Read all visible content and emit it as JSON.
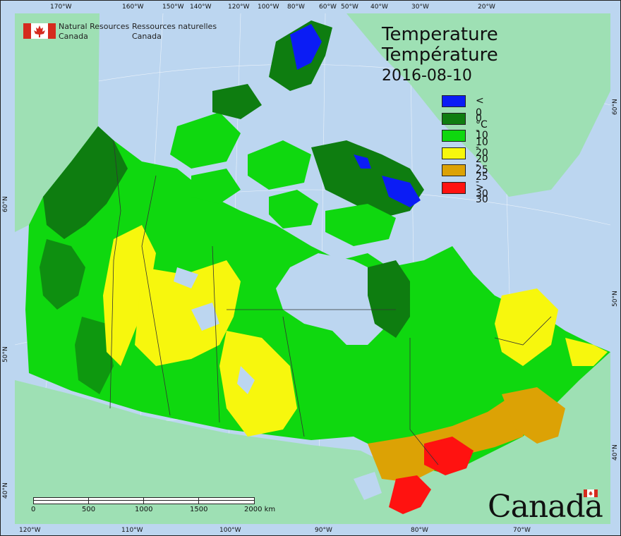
{
  "agency": {
    "name_en_1": "Natural Resources",
    "name_en_2": "Canada",
    "name_fr_1": "Ressources naturelles",
    "name_fr_2": "Canada"
  },
  "title": {
    "line1": "Temperature",
    "line2": "Température",
    "date": "2016-08-10"
  },
  "legend": [
    {
      "label": "< 0 °C",
      "color": "#0b1cf5"
    },
    {
      "label": "0 - 10",
      "color": "#0e7d10"
    },
    {
      "label": "10 - 20",
      "color": "#0fd80f"
    },
    {
      "label": "20 - 25",
      "color": "#f7f70d"
    },
    {
      "label": "25 - 30",
      "color": "#dca205"
    },
    {
      "label": "> 30",
      "color": "#ff1210"
    }
  ],
  "graticule": {
    "top": [
      "170°W",
      "160°W",
      "150°W",
      "140°W",
      "120°W",
      "100°W",
      "80°W",
      "60°W",
      "50°W",
      "40°W",
      "30°W",
      "20°W"
    ],
    "bottom": [
      "120°W",
      "110°W",
      "100°W",
      "90°W",
      "80°W",
      "70°W"
    ],
    "left": [
      "60°N",
      "50°N",
      "40°N"
    ],
    "right": [
      "60°N",
      "50°N",
      "40°N"
    ]
  },
  "scale": {
    "labels": [
      "0",
      "500",
      "1000",
      "1500",
      "2000 km"
    ]
  },
  "wordmark": "Canada",
  "colors": {
    "ocean": "#bcd6f0",
    "foreign_land": "#9ee0b4",
    "border": "#333333"
  }
}
